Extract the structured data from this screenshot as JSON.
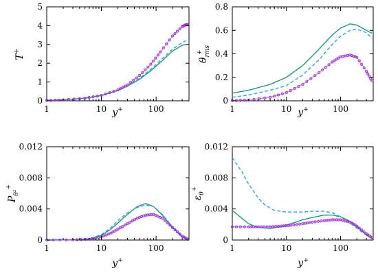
{
  "colors": {
    "solid": "#1a9a7a",
    "dashed": "#2aa6d8",
    "markers": "#a030d8",
    "markerLine": "#8a2fd0"
  },
  "chart_data": [
    {
      "id": "tl",
      "type": "line",
      "xscale": "log",
      "xlim": [
        1,
        400
      ],
      "ylim": [
        0,
        5
      ],
      "xticks": [
        {
          "v": 1,
          "label": "1"
        },
        {
          "v": 10,
          "label": "10"
        },
        {
          "v": 100,
          "label": "100"
        }
      ],
      "yticks": [
        {
          "v": 0,
          "label": "0"
        },
        {
          "v": 1,
          "label": "1"
        },
        {
          "v": 2,
          "label": "2"
        },
        {
          "v": 3,
          "label": "3"
        },
        {
          "v": 4,
          "label": "4"
        },
        {
          "v": 5,
          "label": "5"
        }
      ],
      "xlabel": "y+",
      "ylabel": "T+",
      "series": [
        {
          "style": "solid",
          "x": [
            1,
            2,
            5,
            10,
            20,
            30,
            50,
            80,
            120,
            200,
            300,
            350
          ],
          "y": [
            0.02,
            0.05,
            0.14,
            0.28,
            0.55,
            0.78,
            1.15,
            1.6,
            2.05,
            2.65,
            2.95,
            3.0
          ]
        },
        {
          "style": "dashed",
          "x": [
            1,
            2,
            5,
            10,
            20,
            30,
            50,
            80,
            120,
            200,
            300,
            350
          ],
          "y": [
            0.02,
            0.05,
            0.14,
            0.28,
            0.55,
            0.8,
            1.2,
            1.68,
            2.15,
            2.75,
            3.1,
            3.2
          ]
        },
        {
          "style": "markers",
          "x": [
            1,
            2,
            5,
            10,
            20,
            30,
            50,
            80,
            120,
            200,
            300,
            350,
            380
          ],
          "y": [
            0.02,
            0.05,
            0.14,
            0.29,
            0.58,
            0.85,
            1.35,
            1.95,
            2.6,
            3.45,
            3.95,
            4.05,
            4.05
          ]
        }
      ]
    },
    {
      "id": "tr",
      "type": "line",
      "xscale": "log",
      "xlim": [
        1,
        400
      ],
      "ylim": [
        0,
        0.8
      ],
      "xticks": [
        {
          "v": 1,
          "label": "1"
        },
        {
          "v": 10,
          "label": "10"
        },
        {
          "v": 100,
          "label": "100"
        }
      ],
      "yticks": [
        {
          "v": 0,
          "label": "0"
        },
        {
          "v": 0.2,
          "label": "0.2"
        },
        {
          "v": 0.4,
          "label": "0.4"
        },
        {
          "v": 0.6,
          "label": "0.6"
        },
        {
          "v": 0.8,
          "label": "0.8"
        }
      ],
      "xlabel": "y+",
      "ylabel": "θ+rms",
      "series": [
        {
          "style": "solid",
          "x": [
            1,
            2,
            5,
            10,
            20,
            40,
            70,
            100,
            150,
            200,
            300,
            380
          ],
          "y": [
            0.065,
            0.09,
            0.14,
            0.2,
            0.3,
            0.44,
            0.56,
            0.62,
            0.655,
            0.645,
            0.6,
            0.575
          ]
        },
        {
          "style": "dashed",
          "x": [
            1,
            2,
            5,
            10,
            20,
            40,
            70,
            100,
            150,
            200,
            300,
            380
          ],
          "y": [
            0.03,
            0.05,
            0.09,
            0.13,
            0.22,
            0.35,
            0.48,
            0.55,
            0.6,
            0.61,
            0.58,
            0.53
          ]
        },
        {
          "style": "markers",
          "x": [
            1,
            2,
            5,
            10,
            20,
            40,
            70,
            100,
            150,
            200,
            300,
            380
          ],
          "y": [
            0.002,
            0.007,
            0.03,
            0.07,
            0.14,
            0.24,
            0.33,
            0.375,
            0.39,
            0.37,
            0.25,
            0.17
          ]
        }
      ]
    },
    {
      "id": "bl",
      "type": "line",
      "xscale": "log",
      "xlim": [
        1,
        400
      ],
      "ylim": [
        0,
        0.012
      ],
      "xticks": [
        {
          "v": 1,
          "label": "1"
        },
        {
          "v": 10,
          "label": "10"
        },
        {
          "v": 100,
          "label": "100"
        }
      ],
      "yticks": [
        {
          "v": 0,
          "label": "0"
        },
        {
          "v": 0.004,
          "label": "0.004"
        },
        {
          "v": 0.008,
          "label": "0.008"
        },
        {
          "v": 0.012,
          "label": "0.012"
        }
      ],
      "xlabel": "y+",
      "ylabel": "Pθ2+",
      "series": [
        {
          "style": "solid",
          "x": [
            1,
            3,
            6,
            10,
            15,
            20,
            30,
            45,
            65,
            90,
            130,
            200,
            300,
            380
          ],
          "y": [
            0.0,
            3e-05,
            0.00015,
            0.0006,
            0.0014,
            0.0022,
            0.0033,
            0.0043,
            0.0047,
            0.0043,
            0.0032,
            0.0016,
            0.0004,
            0.0001
          ]
        },
        {
          "style": "dashed",
          "x": [
            1,
            3,
            6,
            10,
            15,
            20,
            30,
            45,
            65,
            90,
            130,
            200,
            300,
            380
          ],
          "y": [
            0.0,
            3e-05,
            0.00018,
            0.0007,
            0.0016,
            0.0025,
            0.0035,
            0.0042,
            0.0045,
            0.0043,
            0.0033,
            0.0017,
            0.0005,
            0.0001
          ]
        },
        {
          "style": "markers",
          "x": [
            1,
            3,
            6,
            10,
            15,
            20,
            30,
            45,
            65,
            90,
            130,
            200,
            300,
            380
          ],
          "y": [
            0.0,
            2e-05,
            0.0001,
            0.0004,
            0.0009,
            0.0014,
            0.0021,
            0.0028,
            0.0032,
            0.0033,
            0.0028,
            0.0016,
            0.0005,
            0.0001
          ]
        }
      ]
    },
    {
      "id": "br",
      "type": "line",
      "xscale": "log",
      "xlim": [
        1,
        400
      ],
      "ylim": [
        0,
        0.012
      ],
      "xticks": [
        {
          "v": 1,
          "label": "1"
        },
        {
          "v": 10,
          "label": "10"
        },
        {
          "v": 100,
          "label": "100"
        }
      ],
      "yticks": [
        {
          "v": 0,
          "label": "0"
        },
        {
          "v": 0.004,
          "label": "0.004"
        },
        {
          "v": 0.008,
          "label": "0.008"
        },
        {
          "v": 0.012,
          "label": "0.012"
        }
      ],
      "xlabel": "y+",
      "ylabel": "εθ+",
      "series": [
        {
          "style": "solid",
          "x": [
            1,
            1.5,
            2,
            3,
            5,
            8,
            12,
            20,
            30,
            50,
            70,
            100,
            150,
            200,
            300,
            380
          ],
          "y": [
            0.0038,
            0.0028,
            0.0021,
            0.0016,
            0.0015,
            0.0017,
            0.0021,
            0.0026,
            0.0029,
            0.0032,
            0.0032,
            0.003,
            0.0024,
            0.0017,
            0.0007,
            0.0002
          ]
        },
        {
          "style": "dashed",
          "x": [
            1,
            1.5,
            2,
            3,
            4,
            6,
            10,
            20,
            30,
            50,
            70,
            100,
            150,
            200,
            300,
            380
          ],
          "y": [
            0.0106,
            0.0088,
            0.0072,
            0.0054,
            0.0045,
            0.0038,
            0.0036,
            0.0036,
            0.0037,
            0.0037,
            0.0035,
            0.003,
            0.0022,
            0.0015,
            0.0006,
            0.0002
          ]
        },
        {
          "style": "markers",
          "x": [
            1,
            2,
            3,
            5,
            8,
            12,
            20,
            30,
            50,
            70,
            100,
            150,
            200,
            300,
            380
          ],
          "y": [
            0.0017,
            0.0017,
            0.0017,
            0.0017,
            0.0018,
            0.0019,
            0.0021,
            0.0023,
            0.0025,
            0.0026,
            0.0026,
            0.0023,
            0.0018,
            0.0008,
            0.0003
          ]
        }
      ]
    }
  ]
}
